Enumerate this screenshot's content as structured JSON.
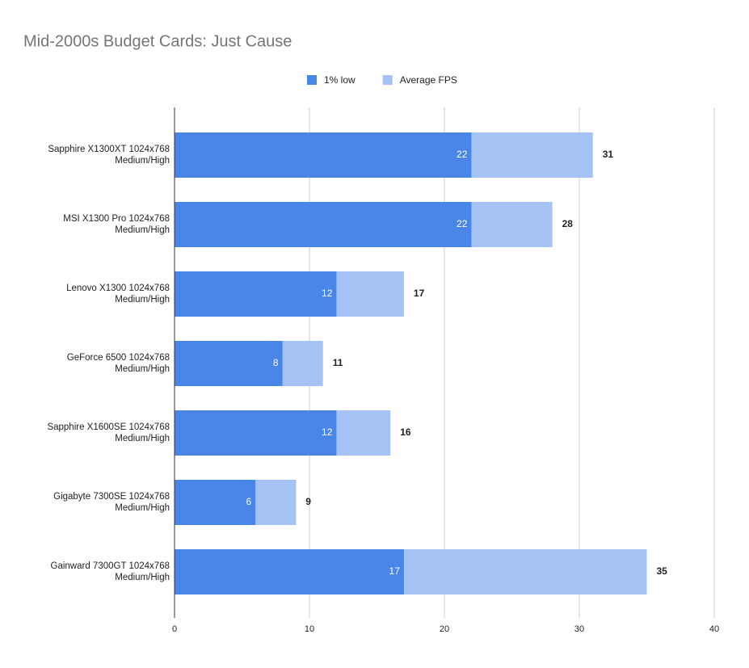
{
  "chart_data": {
    "type": "bar",
    "orientation": "horizontal",
    "title": "Mid-2000s Budget Cards: Just Cause",
    "categories": [
      [
        "Sapphire X1300XT 1024x768",
        "Medium/High"
      ],
      [
        "MSI X1300 Pro 1024x768",
        "Medium/High"
      ],
      [
        "Lenovo X1300 1024x768",
        "Medium/High"
      ],
      [
        "GeForce 6500 1024x768",
        "Medium/High"
      ],
      [
        "Sapphire X1600SE 1024x768",
        "Medium/High"
      ],
      [
        "Gigabyte 7300SE 1024x768",
        "Medium/High"
      ],
      [
        "Gainward 7300GT 1024x768",
        "Medium/High"
      ]
    ],
    "series": [
      {
        "name": "1% low",
        "color": "#4a86e8",
        "values": [
          22,
          22,
          12,
          8,
          12,
          6,
          17
        ]
      },
      {
        "name": "Average FPS",
        "color": "#a4c2f4",
        "values": [
          31,
          28,
          17,
          11,
          16,
          9,
          35
        ]
      }
    ],
    "xlim": [
      0,
      40
    ],
    "xticks": [
      0,
      10,
      20,
      30,
      40
    ],
    "grid": true,
    "legend": "top"
  }
}
